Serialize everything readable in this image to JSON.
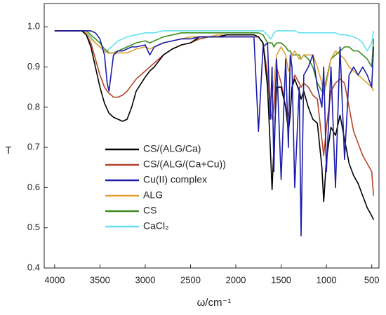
{
  "chart_data": {
    "type": "line",
    "xlabel": "ω/cm⁻¹",
    "ylabel": "T",
    "x": [
      4000,
      3900,
      3800,
      3700,
      3650,
      3600,
      3550,
      3500,
      3450,
      3420,
      3400,
      3350,
      3300,
      3250,
      3200,
      3150,
      3100,
      3000,
      2950,
      2900,
      2800,
      2700,
      2600,
      2500,
      2400,
      2300,
      2200,
      2100,
      2000,
      1900,
      1800,
      1750,
      1700,
      1650,
      1620,
      1600,
      1580,
      1550,
      1500,
      1450,
      1420,
      1400,
      1380,
      1350,
      1300,
      1280,
      1250,
      1200,
      1150,
      1100,
      1050,
      1030,
      1000,
      950,
      900,
      850,
      800,
      750,
      700,
      650,
      600,
      550,
      500,
      480
    ],
    "series": [
      {
        "name": "CS/(ALG/Ca)",
        "color": "#000000",
        "values": [
          0.99,
          0.99,
          0.99,
          0.99,
          0.98,
          0.95,
          0.9,
          0.85,
          0.81,
          0.795,
          0.785,
          0.775,
          0.77,
          0.765,
          0.77,
          0.8,
          0.84,
          0.875,
          0.89,
          0.9,
          0.93,
          0.945,
          0.955,
          0.96,
          0.975,
          0.975,
          0.975,
          0.98,
          0.98,
          0.98,
          0.98,
          0.975,
          0.96,
          0.85,
          0.7,
          0.595,
          0.7,
          0.85,
          0.85,
          0.8,
          0.74,
          0.78,
          0.85,
          0.87,
          0.84,
          0.82,
          0.84,
          0.8,
          0.77,
          0.76,
          0.65,
          0.565,
          0.67,
          0.75,
          0.73,
          0.78,
          0.72,
          0.66,
          0.63,
          0.61,
          0.58,
          0.55,
          0.53,
          0.52
        ]
      },
      {
        "name": "CS/(ALG/(Ca+Cu))",
        "color": "#b5452a",
        "values": [
          0.99,
          0.99,
          0.99,
          0.99,
          0.98,
          0.96,
          0.92,
          0.88,
          0.85,
          0.84,
          0.835,
          0.825,
          0.825,
          0.83,
          0.84,
          0.855,
          0.87,
          0.89,
          0.9,
          0.91,
          0.93,
          0.945,
          0.955,
          0.96,
          0.97,
          0.975,
          0.975,
          0.975,
          0.975,
          0.975,
          0.975,
          0.975,
          0.96,
          0.88,
          0.8,
          0.77,
          0.8,
          0.9,
          0.86,
          0.8,
          0.78,
          0.79,
          0.85,
          0.88,
          0.86,
          0.85,
          0.86,
          0.85,
          0.83,
          0.82,
          0.72,
          0.68,
          0.75,
          0.84,
          0.86,
          0.87,
          0.86,
          0.8,
          0.74,
          0.71,
          0.68,
          0.66,
          0.64,
          0.58
        ]
      },
      {
        "name": "Cu(II) complex",
        "color": "#1c1ca8",
        "values": [
          0.99,
          0.99,
          0.99,
          0.99,
          0.99,
          0.99,
          0.985,
          0.97,
          0.93,
          0.86,
          0.84,
          0.93,
          0.94,
          0.94,
          0.945,
          0.95,
          0.95,
          0.955,
          0.93,
          0.95,
          0.96,
          0.965,
          0.97,
          0.97,
          0.975,
          0.975,
          0.975,
          0.975,
          0.975,
          0.975,
          0.975,
          0.74,
          0.95,
          0.96,
          0.77,
          0.9,
          0.64,
          0.92,
          0.62,
          0.92,
          0.7,
          0.93,
          0.9,
          0.6,
          0.85,
          0.48,
          0.88,
          0.9,
          0.93,
          0.85,
          0.8,
          0.9,
          0.64,
          0.9,
          0.6,
          0.95,
          0.67,
          0.88,
          0.9,
          0.88,
          0.9,
          0.88,
          0.85,
          0.95
        ]
      },
      {
        "name": "ALG",
        "color": "#e0a030",
        "values": [
          0.99,
          0.99,
          0.99,
          0.99,
          0.985,
          0.97,
          0.96,
          0.95,
          0.94,
          0.935,
          0.935,
          0.935,
          0.935,
          0.935,
          0.935,
          0.94,
          0.945,
          0.95,
          0.945,
          0.95,
          0.96,
          0.965,
          0.97,
          0.975,
          0.975,
          0.975,
          0.98,
          0.98,
          0.98,
          0.98,
          0.98,
          0.975,
          0.96,
          0.85,
          0.82,
          0.83,
          0.86,
          0.93,
          0.95,
          0.93,
          0.89,
          0.9,
          0.93,
          0.94,
          0.92,
          0.92,
          0.93,
          0.93,
          0.93,
          0.9,
          0.86,
          0.83,
          0.86,
          0.92,
          0.94,
          0.93,
          0.92,
          0.9,
          0.89,
          0.88,
          0.87,
          0.86,
          0.85,
          0.84
        ]
      },
      {
        "name": "CS",
        "color": "#3c8c1e",
        "values": [
          0.99,
          0.99,
          0.99,
          0.99,
          0.99,
          0.98,
          0.97,
          0.96,
          0.945,
          0.94,
          0.935,
          0.935,
          0.94,
          0.945,
          0.95,
          0.955,
          0.96,
          0.965,
          0.96,
          0.965,
          0.975,
          0.98,
          0.985,
          0.985,
          0.985,
          0.985,
          0.985,
          0.985,
          0.985,
          0.985,
          0.985,
          0.985,
          0.98,
          0.96,
          0.96,
          0.96,
          0.95,
          0.96,
          0.96,
          0.95,
          0.94,
          0.94,
          0.93,
          0.93,
          0.93,
          0.92,
          0.93,
          0.92,
          0.9,
          0.86,
          0.84,
          0.84,
          0.87,
          0.92,
          0.93,
          0.94,
          0.95,
          0.95,
          0.94,
          0.94,
          0.93,
          0.92,
          0.9,
          0.97
        ]
      },
      {
        "name": "CaCl₂",
        "color": "#66e0f0",
        "values": [
          0.99,
          0.99,
          0.99,
          0.99,
          0.985,
          0.975,
          0.96,
          0.95,
          0.94,
          0.94,
          0.945,
          0.955,
          0.965,
          0.97,
          0.975,
          0.978,
          0.98,
          0.985,
          0.985,
          0.985,
          0.99,
          0.99,
          0.99,
          0.99,
          0.99,
          0.99,
          0.99,
          0.99,
          0.99,
          0.99,
          0.99,
          0.99,
          0.99,
          0.98,
          0.97,
          0.975,
          0.985,
          0.99,
          0.99,
          0.99,
          0.99,
          0.99,
          0.99,
          0.99,
          0.985,
          0.985,
          0.985,
          0.985,
          0.985,
          0.985,
          0.985,
          0.985,
          0.985,
          0.985,
          0.985,
          0.98,
          0.98,
          0.978,
          0.975,
          0.97,
          0.96,
          0.94,
          0.96,
          0.99
        ]
      }
    ],
    "xlim": [
      4115,
      420
    ],
    "xticks": [
      4000,
      3500,
      3000,
      2500,
      2000,
      1500,
      1000,
      500
    ],
    "ylim": [
      0.4,
      1.058
    ],
    "yticks": [
      0.4,
      0.5,
      0.6,
      0.7,
      0.8,
      0.9,
      {
        "value": 1,
        "label": "1.0"
      }
    ],
    "legend": "center"
  }
}
